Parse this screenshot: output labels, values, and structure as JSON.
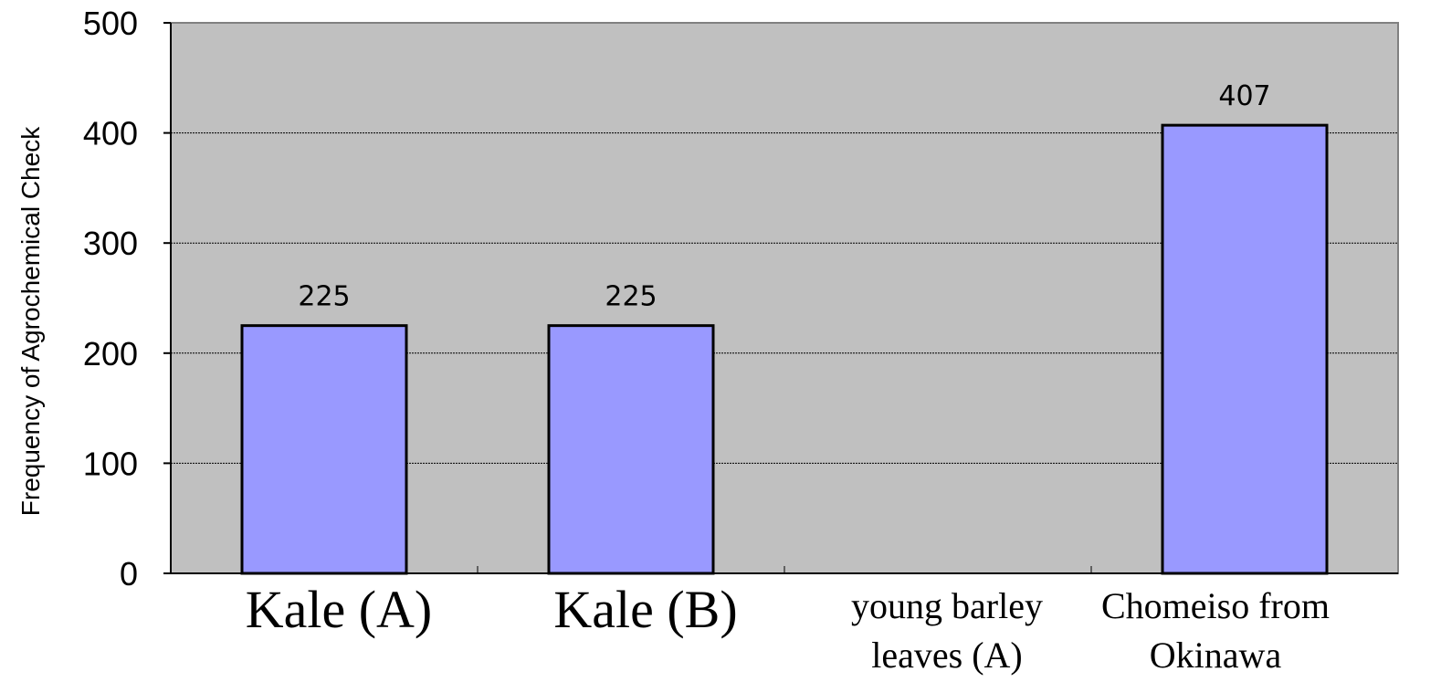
{
  "chart_data": {
    "type": "bar",
    "title": "",
    "xlabel": "",
    "ylabel": "Frequency of Agrochemical Check",
    "ylim": [
      0,
      500
    ],
    "yticks": [
      0,
      100,
      200,
      300,
      400,
      500
    ],
    "grid": true,
    "legend": "none",
    "colors": {
      "bar": "#9999ff",
      "plot_bg": "#c0c0c0",
      "bar_edge": "#000000"
    },
    "categories": [
      [
        "Kale (A)"
      ],
      [
        "Kale (B)"
      ],
      [
        "young barley",
        "leaves (A)"
      ],
      [
        "Chomeiso from",
        "Okinawa"
      ]
    ],
    "values": [
      225,
      225,
      null,
      407
    ],
    "data_labels": [
      "225",
      "225",
      "",
      "407"
    ]
  }
}
